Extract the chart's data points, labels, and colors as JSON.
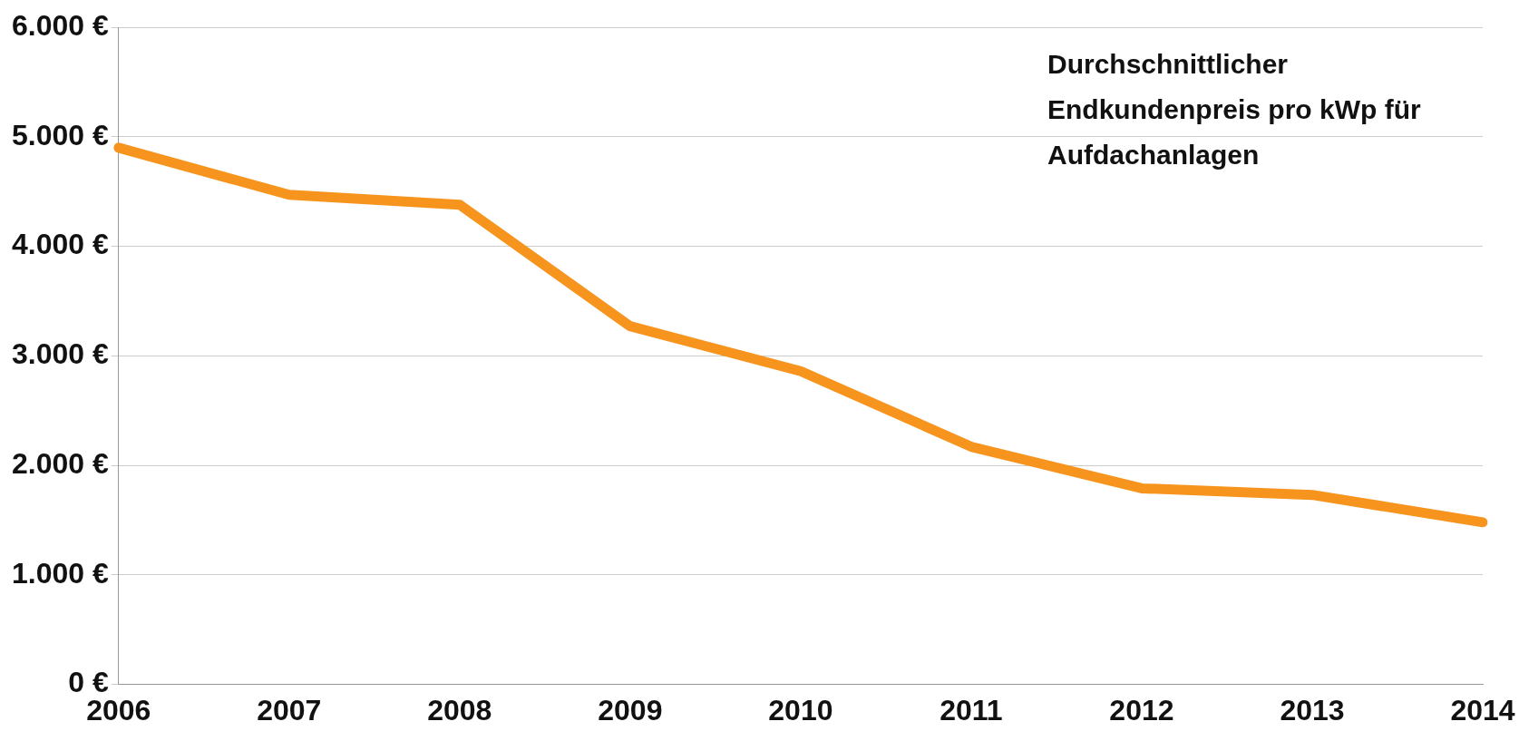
{
  "chart_data": {
    "type": "line",
    "categories": [
      "2006",
      "2007",
      "2008",
      "2009",
      "2010",
      "2011",
      "2012",
      "2013",
      "2014"
    ],
    "values": [
      4900,
      4470,
      4380,
      3270,
      2860,
      2170,
      1790,
      1730,
      1480
    ],
    "color": "#f7941d",
    "ylim": [
      0,
      6000
    ],
    "yticks": [
      {
        "value": 0,
        "label": "0 €"
      },
      {
        "value": 1000,
        "label": "1.000 €"
      },
      {
        "value": 2000,
        "label": "2.000 €"
      },
      {
        "value": 3000,
        "label": "3.000 €"
      },
      {
        "value": 4000,
        "label": "4.000 €"
      },
      {
        "value": 5000,
        "label": "5.000 €"
      },
      {
        "value": 6000,
        "label": "6.000 €"
      }
    ],
    "grid": "y",
    "annotations": [
      "Durchschnittlicher Endkundenpreis pro kWp für Aufdachanlagen"
    ]
  }
}
